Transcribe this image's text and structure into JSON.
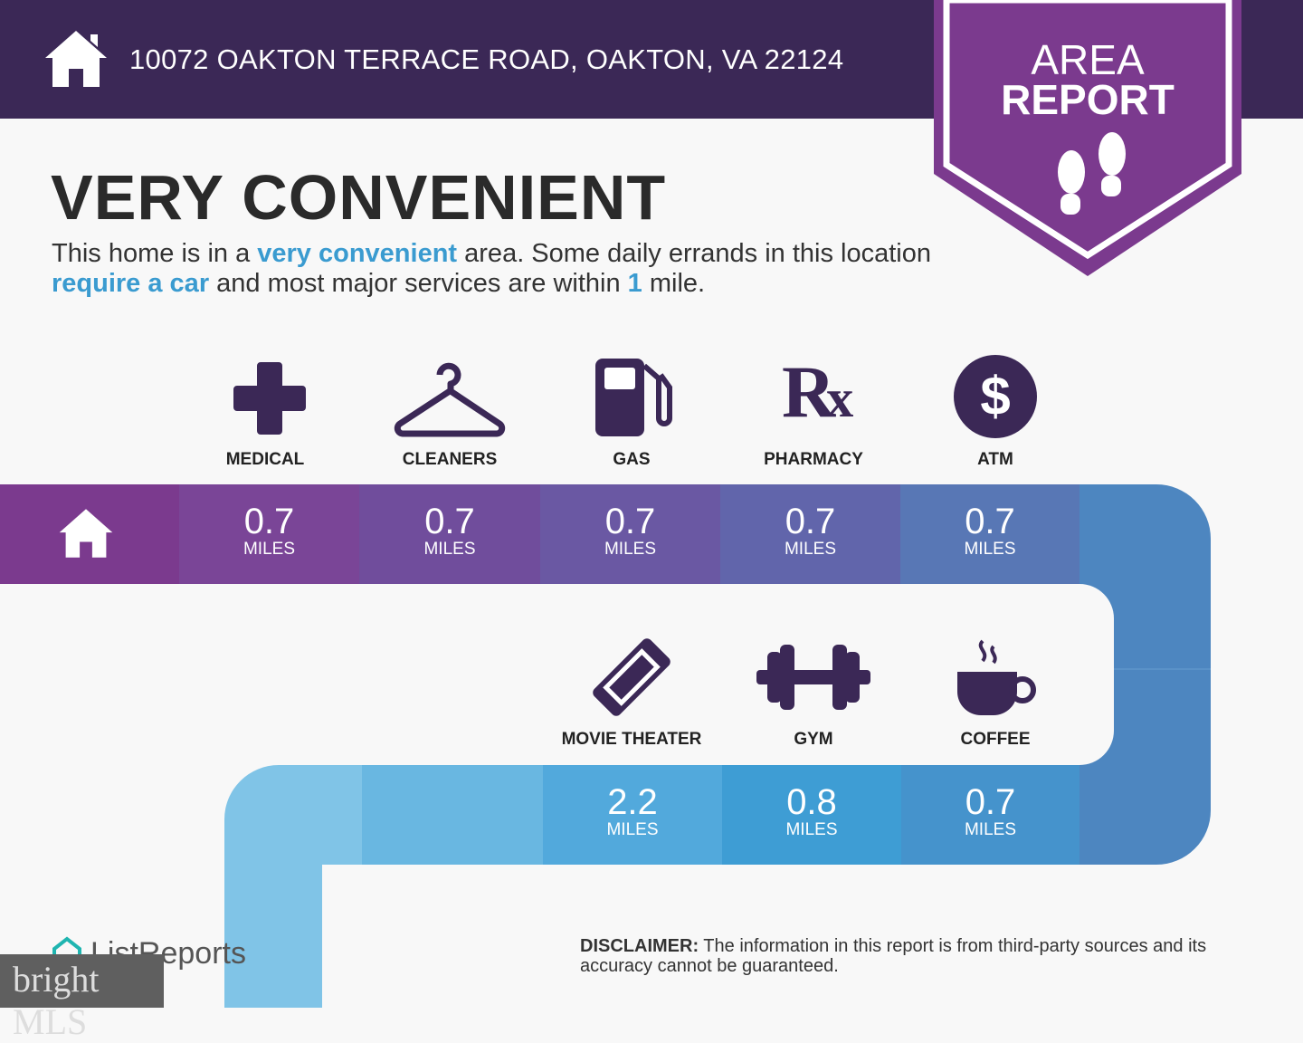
{
  "header": {
    "address": "10072 OAKTON TERRACE ROAD, OAKTON, VA 22124",
    "icon": "home-icon"
  },
  "badge": {
    "line1": "AREA",
    "line2": "REPORT",
    "icon": "footprints-icon",
    "color": "#7b3a8e"
  },
  "headline": "VERY CONVENIENT",
  "description": {
    "p1": "This home is in a ",
    "h1": "very convenient",
    "p2": " area. Some daily errands in this location ",
    "h2": "require a car",
    "p3": " and most major services are within ",
    "h3": "1",
    "p4": " mile."
  },
  "services": [
    {
      "label": "MEDICAL",
      "value": "0.7",
      "unit": "MILES",
      "icon": "medical-cross-icon"
    },
    {
      "label": "CLEANERS",
      "value": "0.7",
      "unit": "MILES",
      "icon": "hanger-icon"
    },
    {
      "label": "GAS",
      "value": "0.7",
      "unit": "MILES",
      "icon": "gas-pump-icon"
    },
    {
      "label": "PHARMACY",
      "value": "0.7",
      "unit": "MILES",
      "icon": "rx-icon"
    },
    {
      "label": "ATM",
      "value": "0.7",
      "unit": "MILES",
      "icon": "dollar-icon"
    },
    {
      "label": "MOVIE THEATER",
      "value": "2.2",
      "unit": "MILES",
      "icon": "ticket-icon"
    },
    {
      "label": "GYM",
      "value": "0.8",
      "unit": "MILES",
      "icon": "dumbbell-icon"
    },
    {
      "label": "COFFEE",
      "value": "0.7",
      "unit": "MILES",
      "icon": "coffee-icon"
    }
  ],
  "footer": {
    "brand": "ListReports",
    "mls_logo": "bright MLS",
    "disclaimer_label": "DISCLAIMER:",
    "disclaimer_text": " The information in this report is from third-party sources and its accuracy cannot be guaranteed."
  }
}
